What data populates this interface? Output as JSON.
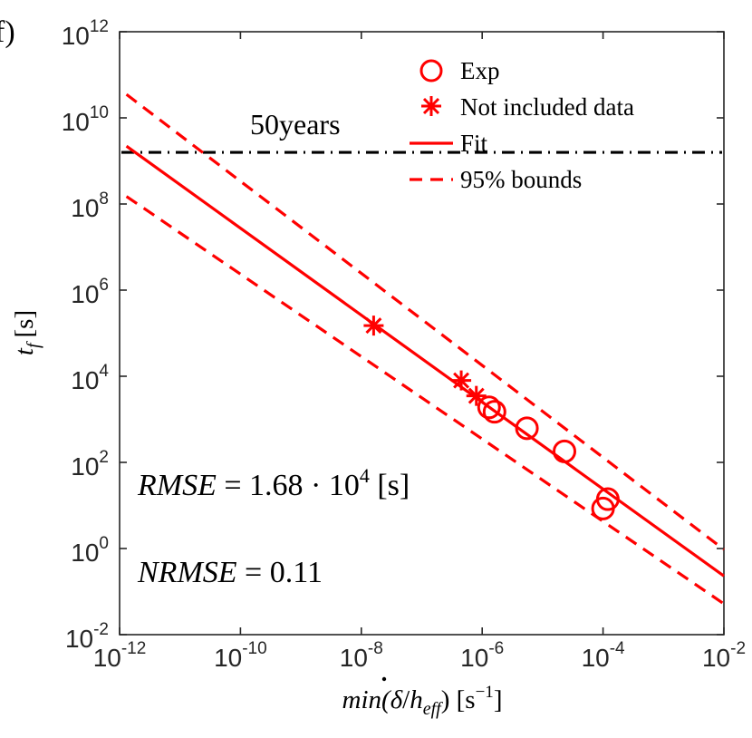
{
  "panel_label": "f)",
  "chart_data": {
    "type": "scatter",
    "scale": "log-log",
    "title": "",
    "xlabel": {
      "prefix": "min(",
      "delta": "δ",
      "slash": "/",
      "h": "h",
      "sub": "eff",
      "suffix": ") [s",
      "exp": "−1",
      "close": "]"
    },
    "ylabel": {
      "t": "t",
      "sub": "f",
      "unit": "[s]"
    },
    "x_range_log10": [
      -12,
      -2
    ],
    "y_range_log10": [
      -2,
      12
    ],
    "x_ticks": [
      {
        "base": "10",
        "exp": "-12"
      },
      {
        "base": "10",
        "exp": "-10"
      },
      {
        "base": "10",
        "exp": "-8"
      },
      {
        "base": "10",
        "exp": "-6"
      },
      {
        "base": "10",
        "exp": "-4"
      },
      {
        "base": "10",
        "exp": "-2"
      }
    ],
    "y_ticks": [
      {
        "base": "10",
        "exp": "12"
      },
      {
        "base": "10",
        "exp": "10"
      },
      {
        "base": "10",
        "exp": "8"
      },
      {
        "base": "10",
        "exp": "6"
      },
      {
        "base": "10",
        "exp": "4"
      },
      {
        "base": "10",
        "exp": "2"
      },
      {
        "base": "10",
        "exp": "0"
      },
      {
        "base": "10",
        "exp": "-2"
      }
    ],
    "legend": {
      "position": "top-right",
      "entries": [
        {
          "label": "Exp",
          "marker": "circle"
        },
        {
          "label": "Not included data",
          "marker": "asterisk"
        },
        {
          "label": "Fit",
          "marker": "solid-line"
        },
        {
          "label": "95% bounds",
          "marker": "dashed-line"
        }
      ]
    },
    "series": [
      {
        "name": "Exp",
        "marker": "circle",
        "color": "#ff0000",
        "points": [
          {
            "x": 1.3e-06,
            "y": 1900
          },
          {
            "x": 1.6e-06,
            "y": 1500
          },
          {
            "x": 5.5e-06,
            "y": 620
          },
          {
            "x": 2.3e-05,
            "y": 180
          },
          {
            "x": 0.00012,
            "y": 14
          },
          {
            "x": 0.0001,
            "y": 8.5
          }
        ]
      },
      {
        "name": "Not included data",
        "marker": "asterisk",
        "color": "#ff0000",
        "points": [
          {
            "x": 1.6e-08,
            "y": 150000
          },
          {
            "x": 4.5e-07,
            "y": 8000
          },
          {
            "x": 8e-07,
            "y": 3500
          }
        ]
      }
    ],
    "fit": {
      "name": "Fit",
      "style": "solid",
      "color": "#ff0000",
      "x_range": [
        1.3e-12,
        0.01
      ],
      "y_at_start": 2200000000.0,
      "y_at_end": 0.23
    },
    "bounds": {
      "name": "95% bounds",
      "style": "dashed",
      "color": "#ff0000",
      "upper": {
        "y_at_start": 35000000000.0,
        "y_at_end": 0.95
      },
      "lower": {
        "y_at_start": 150000000.0,
        "y_at_end": 0.052
      }
    },
    "reference_line": {
      "label": "50years",
      "y": 1580000000.0,
      "style": "dash-dot",
      "color": "#000000"
    },
    "annotations": [
      {
        "id": "rmse",
        "lhs": "RMSE",
        "eq": " = 1.68 · 10",
        "exp": "4",
        "unit": " [s]"
      },
      {
        "id": "nrmse",
        "lhs": "NRMSE",
        "eq": " = 0.11"
      }
    ]
  }
}
